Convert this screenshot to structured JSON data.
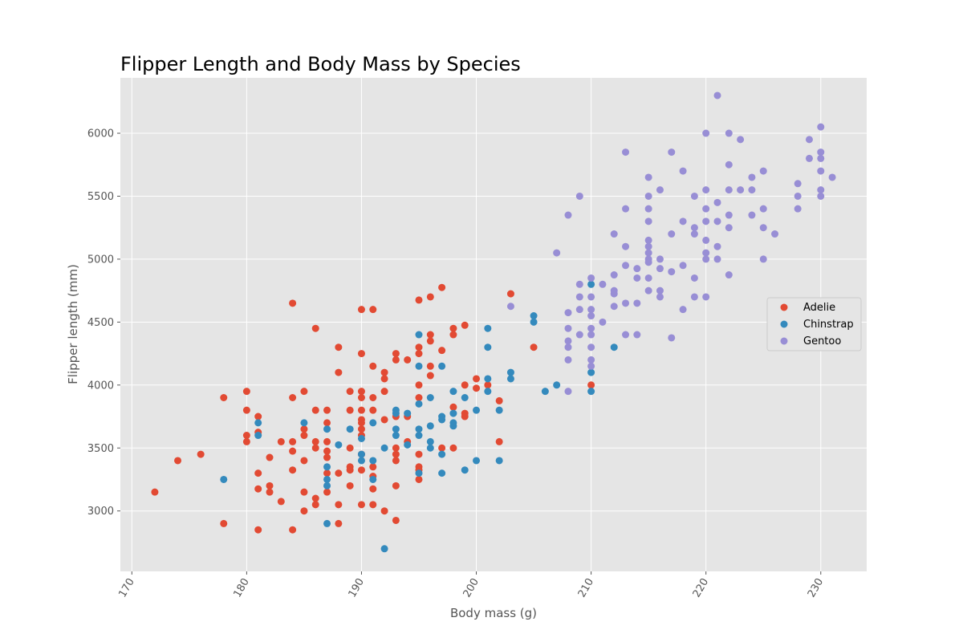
{
  "chart_data": {
    "type": "scatter",
    "title": "Flipper Length and Body Mass by Species",
    "xlabel": "Body mass (g)",
    "ylabel": "Flipper length (mm)",
    "xlim": [
      169,
      234
    ],
    "ylim": [
      2520,
      6440
    ],
    "xticks": [
      170,
      180,
      190,
      200,
      210,
      220,
      230
    ],
    "yticks": [
      3000,
      3500,
      4000,
      4500,
      5000,
      5500,
      6000
    ],
    "grid": true,
    "legend_position": "right",
    "series": [
      {
        "name": "Adelie",
        "color": "#e24a33",
        "points": [
          [
            172,
            3150
          ],
          [
            174,
            3400
          ],
          [
            176,
            3450
          ],
          [
            178,
            3900
          ],
          [
            178,
            2900
          ],
          [
            180,
            3950
          ],
          [
            180,
            3800
          ],
          [
            180,
            3600
          ],
          [
            180,
            3550
          ],
          [
            181,
            3750
          ],
          [
            181,
            3625
          ],
          [
            181,
            3300
          ],
          [
            181,
            3175
          ],
          [
            181,
            2850
          ],
          [
            182,
            3425
          ],
          [
            182,
            3200
          ],
          [
            182,
            3150
          ],
          [
            183,
            3550
          ],
          [
            183,
            3075
          ],
          [
            184,
            4650
          ],
          [
            184,
            3900
          ],
          [
            184,
            3550
          ],
          [
            184,
            3475
          ],
          [
            184,
            3325
          ],
          [
            184,
            2850
          ],
          [
            185,
            3950
          ],
          [
            185,
            3650
          ],
          [
            185,
            3600
          ],
          [
            185,
            3400
          ],
          [
            185,
            3150
          ],
          [
            185,
            3000
          ],
          [
            186,
            4450
          ],
          [
            186,
            3800
          ],
          [
            186,
            3550
          ],
          [
            186,
            3500
          ],
          [
            186,
            3100
          ],
          [
            186,
            3050
          ],
          [
            187,
            3800
          ],
          [
            187,
            3700
          ],
          [
            187,
            3550
          ],
          [
            187,
            3475
          ],
          [
            187,
            3425
          ],
          [
            187,
            3300
          ],
          [
            187,
            3150
          ],
          [
            188,
            4300
          ],
          [
            188,
            4100
          ],
          [
            188,
            3300
          ],
          [
            188,
            3050
          ],
          [
            188,
            2900
          ],
          [
            189,
            3950
          ],
          [
            189,
            3800
          ],
          [
            189,
            3500
          ],
          [
            189,
            3350
          ],
          [
            189,
            3325
          ],
          [
            189,
            3200
          ],
          [
            190,
            4600
          ],
          [
            190,
            4250
          ],
          [
            190,
            3950
          ],
          [
            190,
            3900
          ],
          [
            190,
            3800
          ],
          [
            190,
            3725
          ],
          [
            190,
            3700
          ],
          [
            190,
            3650
          ],
          [
            190,
            3600
          ],
          [
            190,
            3450
          ],
          [
            190,
            3325
          ],
          [
            190,
            3050
          ],
          [
            191,
            4600
          ],
          [
            191,
            4150
          ],
          [
            191,
            3900
          ],
          [
            191,
            3800
          ],
          [
            191,
            3350
          ],
          [
            191,
            3275
          ],
          [
            191,
            3175
          ],
          [
            191,
            3050
          ],
          [
            192,
            4100
          ],
          [
            192,
            4050
          ],
          [
            192,
            3950
          ],
          [
            192,
            3725
          ],
          [
            192,
            3000
          ],
          [
            193,
            4250
          ],
          [
            193,
            4200
          ],
          [
            193,
            3750
          ],
          [
            193,
            3500
          ],
          [
            193,
            3450
          ],
          [
            193,
            3400
          ],
          [
            193,
            3200
          ],
          [
            193,
            2925
          ],
          [
            194,
            4200
          ],
          [
            194,
            3750
          ],
          [
            194,
            3550
          ],
          [
            195,
            4675
          ],
          [
            195,
            4300
          ],
          [
            195,
            4250
          ],
          [
            195,
            4000
          ],
          [
            195,
            3900
          ],
          [
            195,
            3450
          ],
          [
            195,
            3350
          ],
          [
            195,
            3325
          ],
          [
            195,
            3250
          ],
          [
            196,
            4700
          ],
          [
            196,
            4400
          ],
          [
            196,
            4350
          ],
          [
            196,
            4150
          ],
          [
            196,
            4075
          ],
          [
            197,
            4775
          ],
          [
            197,
            4275
          ],
          [
            197,
            3500
          ],
          [
            198,
            4450
          ],
          [
            198,
            4400
          ],
          [
            198,
            3825
          ],
          [
            198,
            3500
          ],
          [
            199,
            4475
          ],
          [
            199,
            4000
          ],
          [
            199,
            3775
          ],
          [
            199,
            3750
          ],
          [
            200,
            4050
          ],
          [
            200,
            3975
          ],
          [
            201,
            4000
          ],
          [
            202,
            3875
          ],
          [
            202,
            3550
          ],
          [
            203,
            4725
          ],
          [
            205,
            4300
          ],
          [
            210,
            4000
          ]
        ]
      },
      {
        "name": "Chinstrap",
        "color": "#348abd",
        "points": [
          [
            178,
            3250
          ],
          [
            181,
            3700
          ],
          [
            181,
            3600
          ],
          [
            185,
            3700
          ],
          [
            187,
            3650
          ],
          [
            187,
            3350
          ],
          [
            187,
            3250
          ],
          [
            187,
            3200
          ],
          [
            187,
            2900
          ],
          [
            188,
            3525
          ],
          [
            189,
            3650
          ],
          [
            190,
            3575
          ],
          [
            190,
            3450
          ],
          [
            190,
            3400
          ],
          [
            191,
            3700
          ],
          [
            191,
            3400
          ],
          [
            191,
            3250
          ],
          [
            192,
            3500
          ],
          [
            192,
            2700
          ],
          [
            193,
            3800
          ],
          [
            193,
            3775
          ],
          [
            193,
            3650
          ],
          [
            193,
            3600
          ],
          [
            194,
            3775
          ],
          [
            194,
            3525
          ],
          [
            195,
            4400
          ],
          [
            195,
            4150
          ],
          [
            195,
            3850
          ],
          [
            195,
            3650
          ],
          [
            195,
            3600
          ],
          [
            195,
            3300
          ],
          [
            196,
            3900
          ],
          [
            196,
            3675
          ],
          [
            196,
            3550
          ],
          [
            196,
            3500
          ],
          [
            197,
            4150
          ],
          [
            197,
            3750
          ],
          [
            197,
            3725
          ],
          [
            197,
            3450
          ],
          [
            197,
            3300
          ],
          [
            198,
            3950
          ],
          [
            198,
            3775
          ],
          [
            198,
            3700
          ],
          [
            198,
            3675
          ],
          [
            199,
            3900
          ],
          [
            199,
            3325
          ],
          [
            200,
            3800
          ],
          [
            200,
            3400
          ],
          [
            201,
            4450
          ],
          [
            201,
            4300
          ],
          [
            201,
            4050
          ],
          [
            201,
            3950
          ],
          [
            202,
            3800
          ],
          [
            202,
            3400
          ],
          [
            203,
            4100
          ],
          [
            203,
            4050
          ],
          [
            205,
            4550
          ],
          [
            205,
            4500
          ],
          [
            206,
            3950
          ],
          [
            207,
            4000
          ],
          [
            210,
            4800
          ],
          [
            210,
            4100
          ],
          [
            210,
            3950
          ],
          [
            212,
            4300
          ]
        ]
      },
      {
        "name": "Gentoo",
        "color": "#988ed5",
        "points": [
          [
            203,
            4625
          ],
          [
            207,
            5050
          ],
          [
            208,
            5350
          ],
          [
            208,
            4575
          ],
          [
            208,
            4450
          ],
          [
            208,
            4350
          ],
          [
            208,
            4300
          ],
          [
            208,
            4200
          ],
          [
            208,
            3950
          ],
          [
            209,
            5500
          ],
          [
            209,
            4800
          ],
          [
            209,
            4700
          ],
          [
            209,
            4600
          ],
          [
            209,
            4400
          ],
          [
            210,
            4850
          ],
          [
            210,
            4700
          ],
          [
            210,
            4600
          ],
          [
            210,
            4550
          ],
          [
            210,
            4450
          ],
          [
            210,
            4400
          ],
          [
            210,
            4300
          ],
          [
            210,
            4200
          ],
          [
            210,
            4150
          ],
          [
            211,
            4800
          ],
          [
            211,
            4500
          ],
          [
            212,
            5200
          ],
          [
            212,
            4875
          ],
          [
            212,
            4750
          ],
          [
            212,
            4725
          ],
          [
            212,
            4625
          ],
          [
            213,
            5850
          ],
          [
            213,
            5400
          ],
          [
            213,
            5100
          ],
          [
            213,
            4950
          ],
          [
            213,
            4650
          ],
          [
            213,
            4400
          ],
          [
            214,
            4925
          ],
          [
            214,
            4850
          ],
          [
            214,
            4650
          ],
          [
            214,
            4400
          ],
          [
            215,
            5650
          ],
          [
            215,
            5500
          ],
          [
            215,
            5400
          ],
          [
            215,
            5300
          ],
          [
            215,
            5150
          ],
          [
            215,
            5100
          ],
          [
            215,
            5050
          ],
          [
            215,
            5000
          ],
          [
            215,
            4975
          ],
          [
            215,
            4850
          ],
          [
            215,
            4750
          ],
          [
            216,
            5550
          ],
          [
            216,
            5000
          ],
          [
            216,
            4925
          ],
          [
            216,
            4750
          ],
          [
            216,
            4700
          ],
          [
            217,
            5850
          ],
          [
            217,
            5200
          ],
          [
            217,
            4900
          ],
          [
            217,
            4375
          ],
          [
            218,
            5700
          ],
          [
            218,
            5300
          ],
          [
            218,
            4950
          ],
          [
            218,
            4600
          ],
          [
            219,
            5500
          ],
          [
            219,
            5250
          ],
          [
            219,
            5200
          ],
          [
            219,
            4850
          ],
          [
            219,
            4700
          ],
          [
            220,
            6000
          ],
          [
            220,
            5550
          ],
          [
            220,
            5400
          ],
          [
            220,
            5300
          ],
          [
            220,
            5150
          ],
          [
            220,
            5050
          ],
          [
            220,
            5000
          ],
          [
            220,
            4700
          ],
          [
            221,
            6300
          ],
          [
            221,
            5450
          ],
          [
            221,
            5300
          ],
          [
            221,
            5100
          ],
          [
            221,
            5000
          ],
          [
            222,
            6000
          ],
          [
            222,
            5750
          ],
          [
            222,
            5550
          ],
          [
            222,
            5350
          ],
          [
            222,
            5250
          ],
          [
            222,
            4875
          ],
          [
            223,
            5950
          ],
          [
            223,
            5550
          ],
          [
            224,
            5650
          ],
          [
            224,
            5550
          ],
          [
            224,
            5350
          ],
          [
            225,
            5700
          ],
          [
            225,
            5400
          ],
          [
            225,
            5250
          ],
          [
            225,
            5000
          ],
          [
            226,
            5200
          ],
          [
            228,
            5600
          ],
          [
            228,
            5500
          ],
          [
            228,
            5400
          ],
          [
            229,
            5950
          ],
          [
            229,
            5800
          ],
          [
            230,
            6050
          ],
          [
            230,
            5850
          ],
          [
            230,
            5800
          ],
          [
            230,
            5700
          ],
          [
            230,
            5550
          ],
          [
            230,
            5500
          ],
          [
            231,
            5650
          ]
        ]
      }
    ]
  }
}
